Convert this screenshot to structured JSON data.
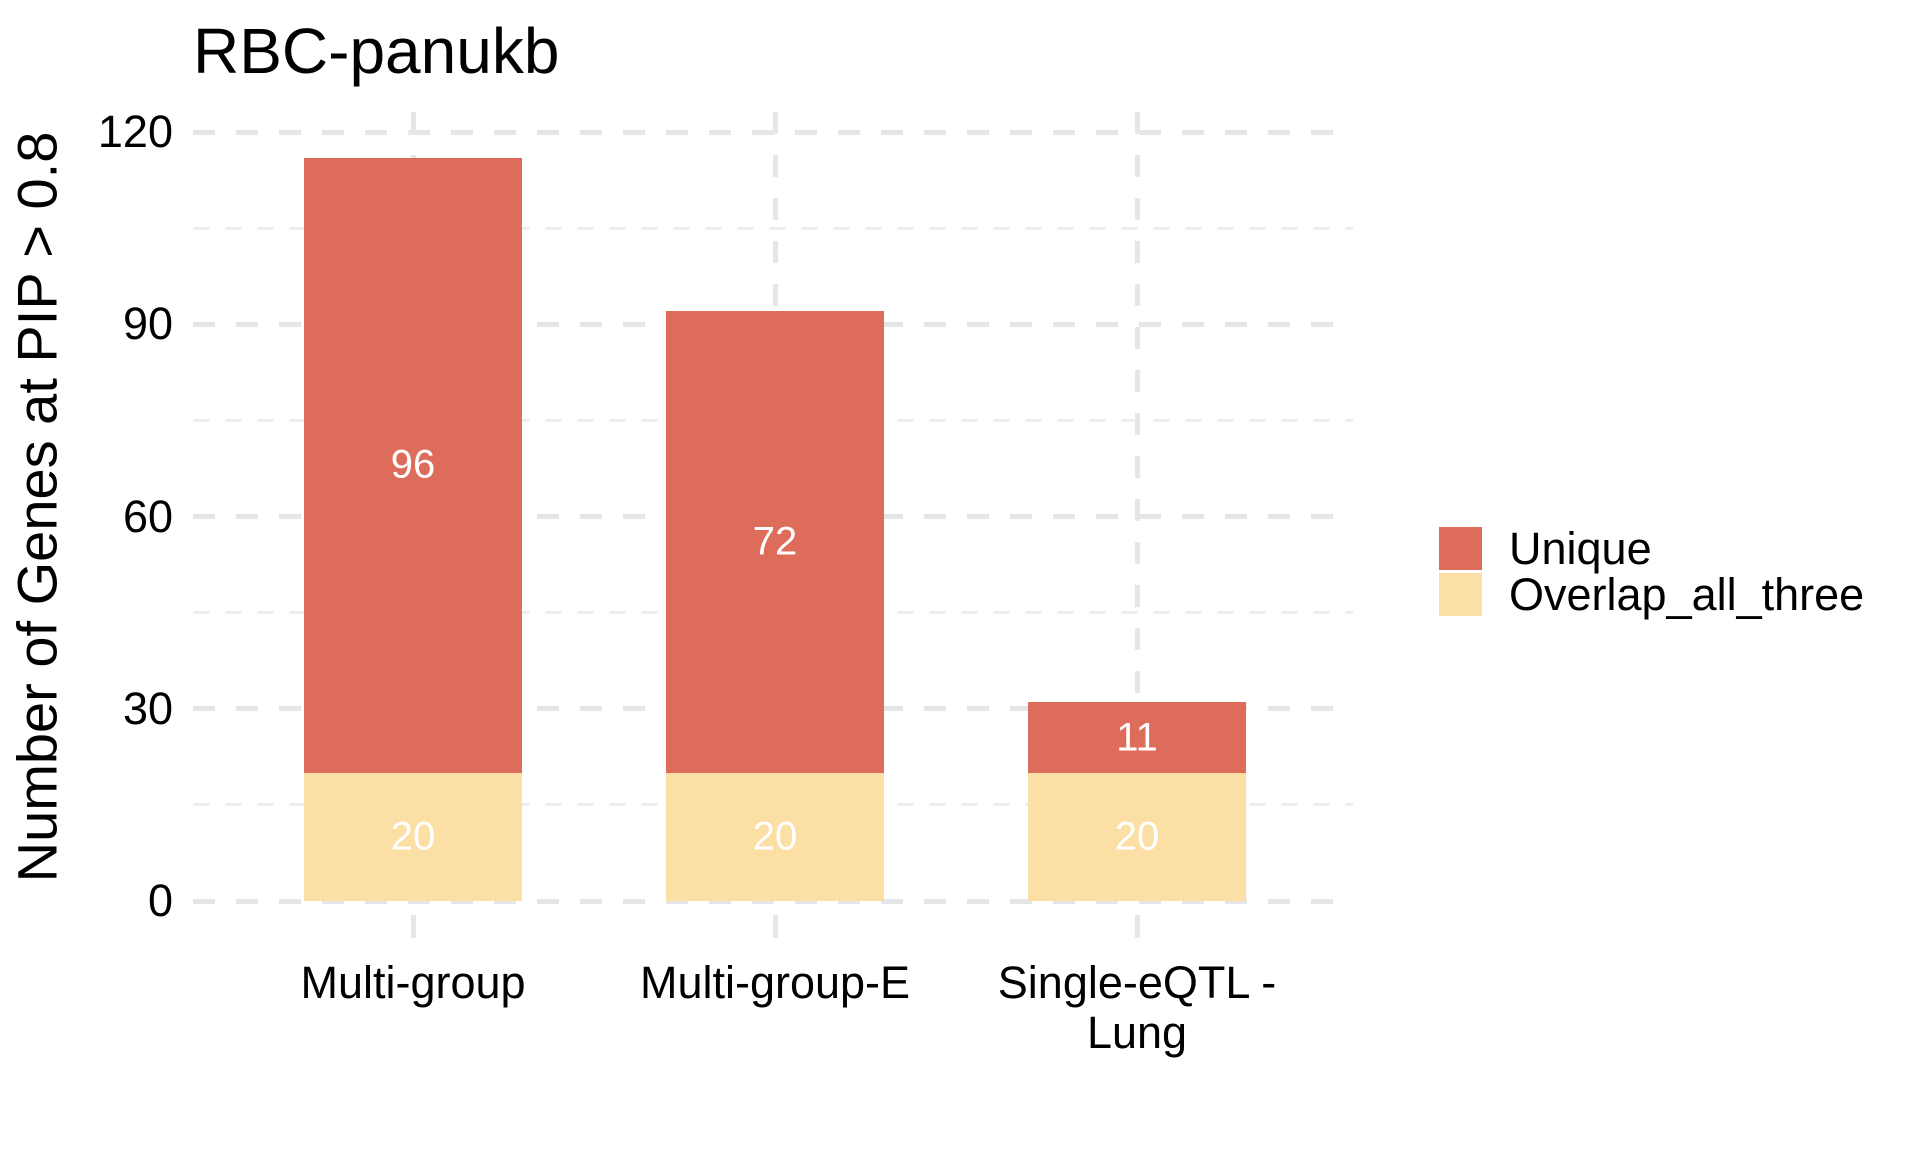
{
  "chart_data": {
    "type": "bar",
    "stacked": true,
    "title": "RBC-panukb",
    "ylabel": "Number of Genes at PIP > 0.8",
    "xlabel": "",
    "categories": [
      "Multi-group",
      "Multi-group-E",
      "Single-eQTL - Lung"
    ],
    "category_lines": [
      [
        "Multi-group"
      ],
      [
        "Multi-group-E"
      ],
      [
        "Single-eQTL -",
        "Lung"
      ]
    ],
    "series": [
      {
        "name": "Overlap_all_three",
        "color": "#FCDFA4",
        "values": [
          20,
          20,
          20
        ]
      },
      {
        "name": "Unique",
        "color": "#DE6C5B",
        "values": [
          96,
          72,
          11
        ]
      }
    ],
    "stack_order": "bottom_to_top",
    "value_labels_color": "#FFFFFF",
    "ylim": [
      0,
      120
    ],
    "yticks_major": [
      0,
      30,
      60,
      90,
      120
    ],
    "yticks_minor": [
      15,
      45,
      75,
      105
    ],
    "grid": "dashed",
    "grid_major_color": "#E6E6E6",
    "grid_minor_color": "#EDEDED",
    "axis_tick_color": "#E7E7E7",
    "legend_position": "right",
    "legend": {
      "items": [
        {
          "label": "Unique",
          "color": "#DE6C5B"
        },
        {
          "label": "Overlap_all_three",
          "color": "#FCDFA4"
        }
      ]
    }
  }
}
